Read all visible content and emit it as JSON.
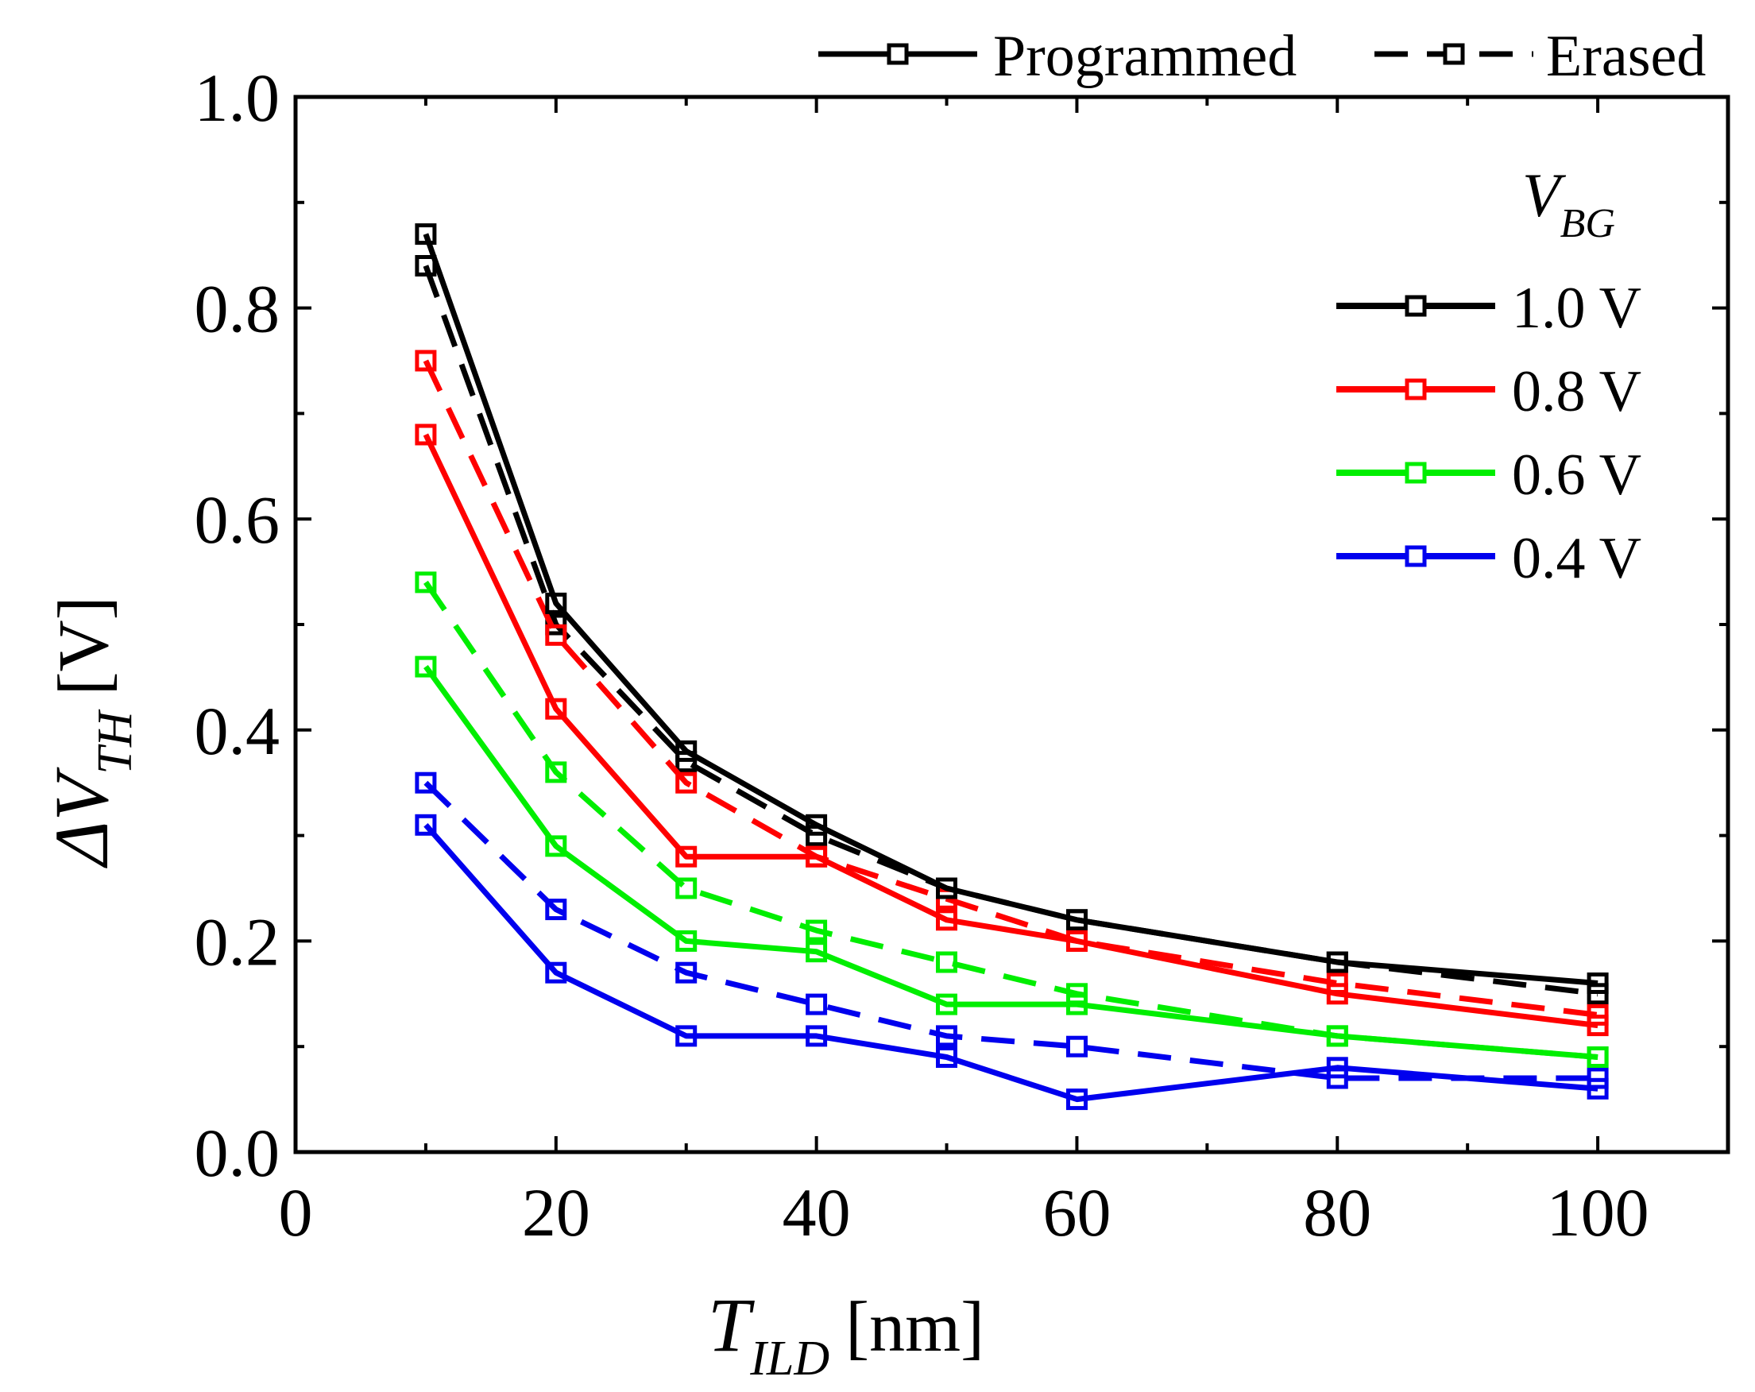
{
  "chart_data": {
    "type": "line",
    "title": "",
    "xlabel": {
      "symbol": "T",
      "subscript": "ILD",
      "unit": "[nm]"
    },
    "ylabel": {
      "symbol": "ΔV",
      "subscript": "TH",
      "unit": "[V]"
    },
    "xlim": [
      0,
      110
    ],
    "ylim": [
      0,
      1.0
    ],
    "x_ticks": [
      0,
      20,
      40,
      60,
      80,
      100
    ],
    "x_tick_labels": [
      "0",
      "20",
      "40",
      "60",
      "80",
      "100"
    ],
    "y_ticks": [
      0.0,
      0.2,
      0.4,
      0.6,
      0.8,
      1.0
    ],
    "y_tick_labels": [
      "0.0",
      "0.2",
      "0.4",
      "0.6",
      "0.8",
      "1.0"
    ],
    "grid": false,
    "x": [
      10,
      20,
      30,
      40,
      50,
      60,
      80,
      100
    ],
    "style_legend": {
      "placement": "top-right-outside",
      "entries": [
        {
          "label": "Programmed",
          "dash": "solid"
        },
        {
          "label": "Erased",
          "dash": "dashed"
        }
      ]
    },
    "color_legend": {
      "placement": "top-right",
      "title_symbol": "V",
      "title_subscript": "BG",
      "entries": [
        {
          "label": "1.0 V",
          "color": "#000000"
        },
        {
          "label": "0.8 V",
          "color": "#ff0000"
        },
        {
          "label": "0.6 V",
          "color": "#00ee00"
        },
        {
          "label": "0.4 V",
          "color": "#0000ee"
        }
      ]
    },
    "series": [
      {
        "name": "1.0 V Programmed",
        "vbg": "1.0 V",
        "state": "Programmed",
        "color": "#000000",
        "dash": "solid",
        "values": [
          0.87,
          0.52,
          0.38,
          0.31,
          0.25,
          0.22,
          0.18,
          0.16
        ]
      },
      {
        "name": "1.0 V Erased",
        "vbg": "1.0 V",
        "state": "Erased",
        "color": "#000000",
        "dash": "dashed",
        "values": [
          0.84,
          0.5,
          0.37,
          0.3,
          0.25,
          0.22,
          0.18,
          0.15
        ]
      },
      {
        "name": "0.8 V Programmed",
        "vbg": "0.8 V",
        "state": "Programmed",
        "color": "#ff0000",
        "dash": "solid",
        "values": [
          0.68,
          0.42,
          0.28,
          0.28,
          0.22,
          0.2,
          0.15,
          0.12
        ]
      },
      {
        "name": "0.8 V Erased",
        "vbg": "0.8 V",
        "state": "Erased",
        "color": "#ff0000",
        "dash": "dashed",
        "values": [
          0.75,
          0.49,
          0.35,
          0.28,
          0.24,
          0.2,
          0.16,
          0.13
        ]
      },
      {
        "name": "0.6 V Programmed",
        "vbg": "0.6 V",
        "state": "Programmed",
        "color": "#00ee00",
        "dash": "solid",
        "values": [
          0.46,
          0.29,
          0.2,
          0.19,
          0.14,
          0.14,
          0.11,
          0.09
        ]
      },
      {
        "name": "0.6 V Erased",
        "vbg": "0.6 V",
        "state": "Erased",
        "color": "#00ee00",
        "dash": "dashed",
        "values": [
          0.54,
          0.36,
          0.25,
          0.21,
          0.18,
          0.15,
          0.11,
          0.09
        ]
      },
      {
        "name": "0.4 V Programmed",
        "vbg": "0.4 V",
        "state": "Programmed",
        "color": "#0000ee",
        "dash": "solid",
        "values": [
          0.31,
          0.17,
          0.11,
          0.11,
          0.09,
          0.05,
          0.08,
          0.06
        ]
      },
      {
        "name": "0.4 V Erased",
        "vbg": "0.4 V",
        "state": "Erased",
        "color": "#0000ee",
        "dash": "dashed",
        "values": [
          0.35,
          0.23,
          0.17,
          0.14,
          0.11,
          0.1,
          0.07,
          0.07
        ]
      }
    ]
  }
}
